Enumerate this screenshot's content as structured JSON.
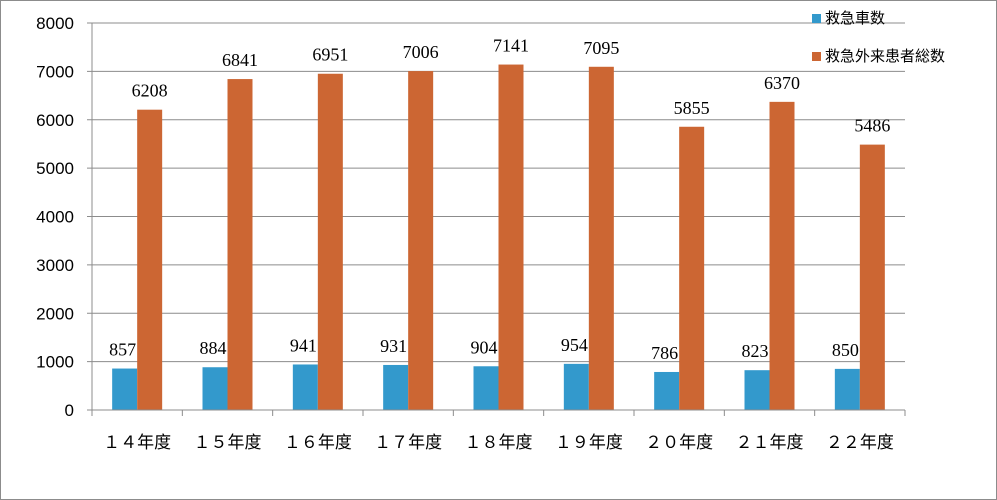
{
  "chart_data": {
    "type": "bar",
    "categories": [
      "１４年度",
      "１５年度",
      "１６年度",
      "１７年度",
      "１８年度",
      "１９年度",
      "２０年度",
      "２１年度",
      "２２年度"
    ],
    "series": [
      {
        "name": "救急車数",
        "color": "#3399CC",
        "values": [
          857,
          884,
          941,
          931,
          904,
          954,
          786,
          823,
          850
        ]
      },
      {
        "name": "救急外来患者総数",
        "color": "#CC6633",
        "values": [
          6208,
          6841,
          6951,
          7006,
          7141,
          7095,
          5855,
          6370,
          5486
        ]
      }
    ],
    "ylim": [
      0,
      8000
    ],
    "yticks": [
      0,
      1000,
      2000,
      3000,
      4000,
      5000,
      6000,
      7000,
      8000
    ],
    "grid": true,
    "legend_position": "top-right",
    "data_labels": true
  }
}
